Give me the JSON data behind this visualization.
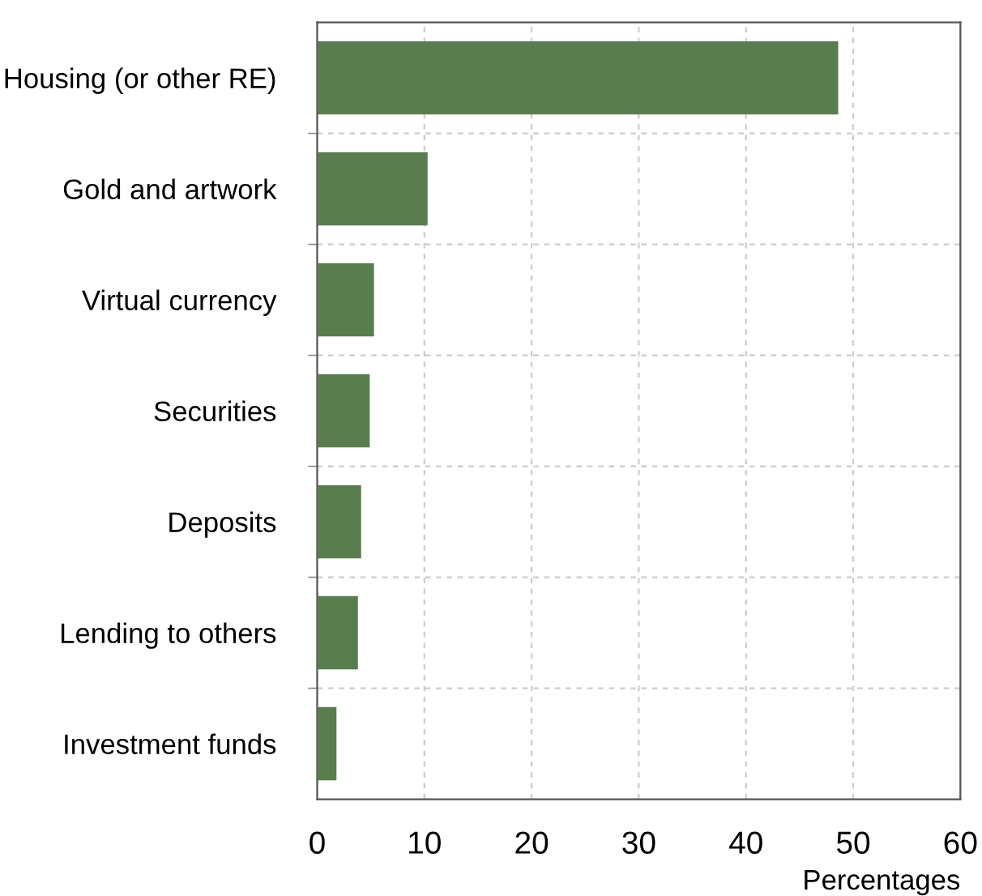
{
  "chart_data": {
    "type": "bar",
    "orientation": "horizontal",
    "xlabel": "Percentages",
    "categories": [
      "Housing (or other RE)",
      "Gold and artwork",
      "Virtual currency",
      "Securities",
      "Deposits",
      "Lending to others",
      "Investment funds"
    ],
    "values": [
      48.6,
      10.3,
      5.3,
      4.9,
      4.1,
      3.8,
      1.8
    ],
    "color": "#5a7d50",
    "xlim": [
      0,
      60
    ],
    "xticks": [
      0,
      10,
      20,
      30,
      40,
      50,
      60
    ],
    "grid": true
  }
}
